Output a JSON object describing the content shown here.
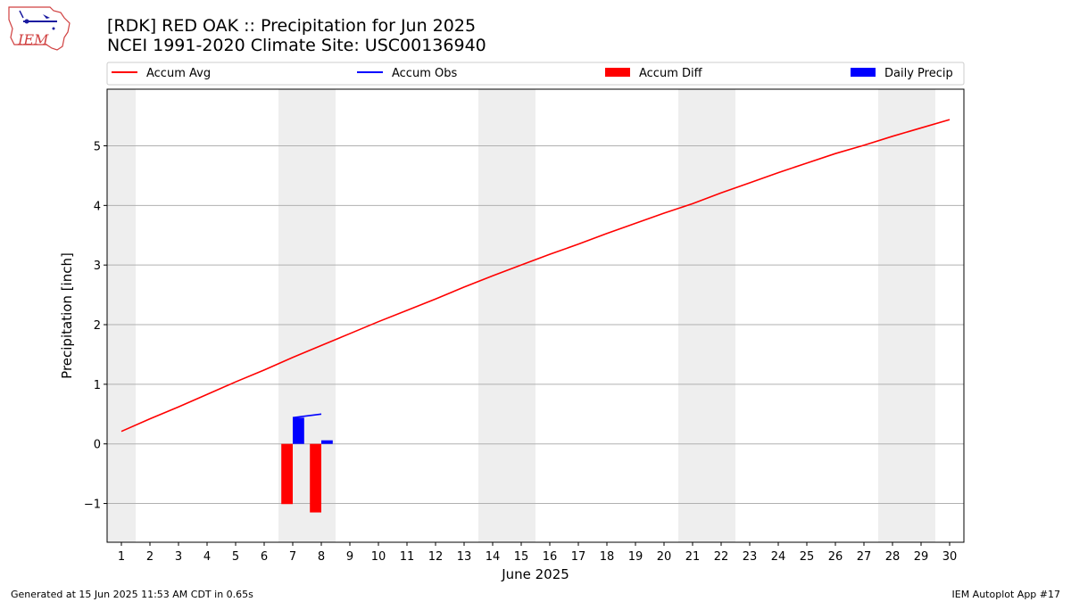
{
  "header": {
    "title_line1": "[RDK] RED OAK :: Precipitation for Jun 2025",
    "title_line2": "NCEI 1991-2020 Climate Site: USC00136940",
    "logo_text": "IEM"
  },
  "footer": {
    "generated": "Generated at 15 Jun 2025 11:53 AM CDT in 0.65s",
    "app": "IEM Autoplot App #17"
  },
  "chart_data": {
    "type": "line",
    "xlabel": "June 2025",
    "ylabel": "Precipitation [inch]",
    "xlim": [
      0.5,
      30.5
    ],
    "ylim": [
      -1.65,
      5.95
    ],
    "x_ticks": [
      1,
      2,
      3,
      4,
      5,
      6,
      7,
      8,
      9,
      10,
      11,
      12,
      13,
      14,
      15,
      16,
      17,
      18,
      19,
      20,
      21,
      22,
      23,
      24,
      25,
      26,
      27,
      28,
      29,
      30
    ],
    "y_ticks": [
      -1,
      0,
      1,
      2,
      3,
      4,
      5
    ],
    "y_tick_labels": [
      "−1",
      "0",
      "1",
      "2",
      "3",
      "4",
      "5"
    ],
    "grid": "horizontal",
    "legend_position": "top",
    "weekend_shading": [
      [
        0.5,
        1.5
      ],
      [
        6.5,
        8.5
      ],
      [
        13.5,
        15.5
      ],
      [
        20.5,
        22.5
      ],
      [
        27.5,
        29.5
      ]
    ],
    "legend": [
      "Accum Avg",
      "Accum Obs",
      "Accum Diff",
      "Daily Precip"
    ],
    "series": [
      {
        "name": "Accum Avg",
        "kind": "line",
        "color": "#ff0000",
        "x": [
          1,
          2,
          3,
          4,
          5,
          6,
          7,
          8,
          9,
          10,
          11,
          12,
          13,
          14,
          15,
          16,
          17,
          18,
          19,
          20,
          21,
          22,
          23,
          24,
          25,
          26,
          27,
          28,
          29,
          30
        ],
        "values": [
          0.21,
          0.42,
          0.62,
          0.83,
          1.04,
          1.24,
          1.45,
          1.65,
          1.85,
          2.05,
          2.24,
          2.43,
          2.63,
          2.82,
          3.0,
          3.18,
          3.35,
          3.53,
          3.7,
          3.87,
          4.03,
          4.21,
          4.38,
          4.55,
          4.71,
          4.87,
          5.01,
          5.16,
          5.3,
          5.44
        ]
      },
      {
        "name": "Accum Obs",
        "kind": "line",
        "color": "#0000ff",
        "x": [
          7,
          8
        ],
        "values": [
          0.44,
          0.5
        ]
      },
      {
        "name": "Accum Diff",
        "kind": "bar",
        "color": "#ff0000",
        "x": [
          7,
          8
        ],
        "values": [
          -1.01,
          -1.15
        ]
      },
      {
        "name": "Daily Precip",
        "kind": "bar",
        "color": "#0000ff",
        "x": [
          7,
          8
        ],
        "values": [
          0.44,
          0.06
        ]
      }
    ]
  }
}
